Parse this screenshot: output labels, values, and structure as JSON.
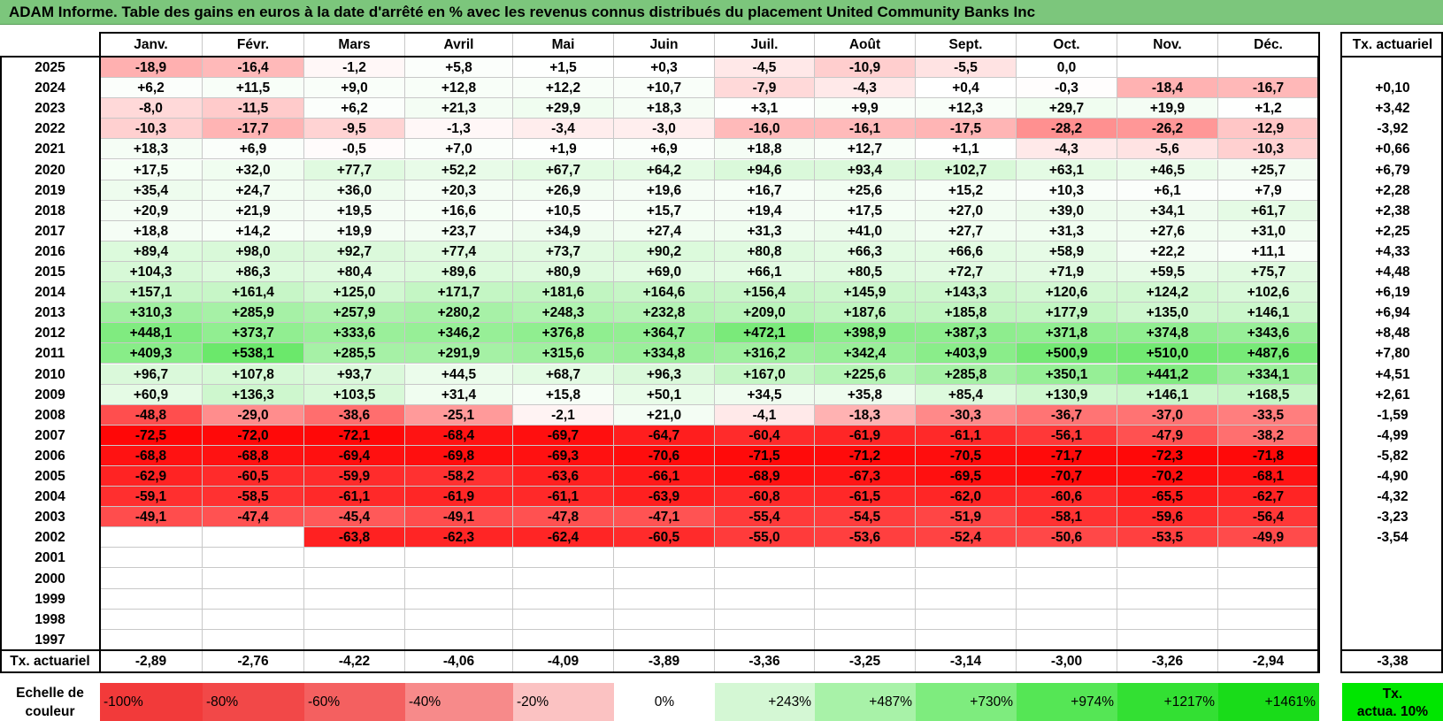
{
  "title": "ADAM Informe. Table des gains en euros à la date d'arrêté en % avec les revenus connus distribués du placement United Community Banks Inc",
  "months": [
    "Janv.",
    "Févr.",
    "Mars",
    "Avril",
    "Mai",
    "Juin",
    "Juil.",
    "Août",
    "Sept.",
    "Oct.",
    "Nov.",
    "Déc."
  ],
  "rate_header": "Tx. actuariel",
  "rows": [
    {
      "year": "2025",
      "values": [
        "-18,9",
        "-16,4",
        "-1,2",
        "+5,8",
        "+1,5",
        "+0,3",
        "-4,5",
        "-10,9",
        "-5,5",
        "0,0",
        "",
        ""
      ],
      "rate": ""
    },
    {
      "year": "2024",
      "values": [
        "+6,2",
        "+11,5",
        "+9,0",
        "+12,8",
        "+12,2",
        "+10,7",
        "-7,9",
        "-4,3",
        "+0,4",
        "-0,3",
        "-18,4",
        "-16,7"
      ],
      "rate": "+0,10"
    },
    {
      "year": "2023",
      "values": [
        "-8,0",
        "-11,5",
        "+6,2",
        "+21,3",
        "+29,9",
        "+18,3",
        "+3,1",
        "+9,9",
        "+12,3",
        "+29,7",
        "+19,9",
        "+1,2"
      ],
      "rate": "+3,42"
    },
    {
      "year": "2022",
      "values": [
        "-10,3",
        "-17,7",
        "-9,5",
        "-1,3",
        "-3,4",
        "-3,0",
        "-16,0",
        "-16,1",
        "-17,5",
        "-28,2",
        "-26,2",
        "-12,9"
      ],
      "rate": "-3,92"
    },
    {
      "year": "2021",
      "values": [
        "+18,3",
        "+6,9",
        "-0,5",
        "+7,0",
        "+1,9",
        "+6,9",
        "+18,8",
        "+12,7",
        "+1,1",
        "-4,3",
        "-5,6",
        "-10,3"
      ],
      "rate": "+0,66"
    },
    {
      "year": "2020",
      "values": [
        "+17,5",
        "+32,0",
        "+77,7",
        "+52,2",
        "+67,7",
        "+64,2",
        "+94,6",
        "+93,4",
        "+102,7",
        "+63,1",
        "+46,5",
        "+25,7"
      ],
      "rate": "+6,79"
    },
    {
      "year": "2019",
      "values": [
        "+35,4",
        "+24,7",
        "+36,0",
        "+20,3",
        "+26,9",
        "+19,6",
        "+16,7",
        "+25,6",
        "+15,2",
        "+10,3",
        "+6,1",
        "+7,9"
      ],
      "rate": "+2,28"
    },
    {
      "year": "2018",
      "values": [
        "+20,9",
        "+21,9",
        "+19,5",
        "+16,6",
        "+10,5",
        "+15,7",
        "+19,4",
        "+17,5",
        "+27,0",
        "+39,0",
        "+34,1",
        "+61,7"
      ],
      "rate": "+2,38"
    },
    {
      "year": "2017",
      "values": [
        "+18,8",
        "+14,2",
        "+19,9",
        "+23,7",
        "+34,9",
        "+27,4",
        "+31,3",
        "+41,0",
        "+27,7",
        "+31,3",
        "+27,6",
        "+31,0"
      ],
      "rate": "+2,25"
    },
    {
      "year": "2016",
      "values": [
        "+89,4",
        "+98,0",
        "+92,7",
        "+77,4",
        "+73,7",
        "+90,2",
        "+80,8",
        "+66,3",
        "+66,6",
        "+58,9",
        "+22,2",
        "+11,1"
      ],
      "rate": "+4,33"
    },
    {
      "year": "2015",
      "values": [
        "+104,3",
        "+86,3",
        "+80,4",
        "+89,6",
        "+80,9",
        "+69,0",
        "+66,1",
        "+80,5",
        "+72,7",
        "+71,9",
        "+59,5",
        "+75,7"
      ],
      "rate": "+4,48"
    },
    {
      "year": "2014",
      "values": [
        "+157,1",
        "+161,4",
        "+125,0",
        "+171,7",
        "+181,6",
        "+164,6",
        "+156,4",
        "+145,9",
        "+143,3",
        "+120,6",
        "+124,2",
        "+102,6"
      ],
      "rate": "+6,19"
    },
    {
      "year": "2013",
      "values": [
        "+310,3",
        "+285,9",
        "+257,9",
        "+280,2",
        "+248,3",
        "+232,8",
        "+209,0",
        "+187,6",
        "+185,8",
        "+177,9",
        "+135,0",
        "+146,1"
      ],
      "rate": "+6,94"
    },
    {
      "year": "2012",
      "values": [
        "+448,1",
        "+373,7",
        "+333,6",
        "+346,2",
        "+376,8",
        "+364,7",
        "+472,1",
        "+398,9",
        "+387,3",
        "+371,8",
        "+374,8",
        "+343,6"
      ],
      "rate": "+8,48"
    },
    {
      "year": "2011",
      "values": [
        "+409,3",
        "+538,1",
        "+285,5",
        "+291,9",
        "+315,6",
        "+334,8",
        "+316,2",
        "+342,4",
        "+403,9",
        "+500,9",
        "+510,0",
        "+487,6"
      ],
      "rate": "+7,80"
    },
    {
      "year": "2010",
      "values": [
        "+96,7",
        "+107,8",
        "+93,7",
        "+44,5",
        "+68,7",
        "+96,3",
        "+167,0",
        "+225,6",
        "+285,8",
        "+350,1",
        "+441,2",
        "+334,1"
      ],
      "rate": "+4,51"
    },
    {
      "year": "2009",
      "values": [
        "+60,9",
        "+136,3",
        "+103,5",
        "+31,4",
        "+15,8",
        "+50,1",
        "+34,5",
        "+35,8",
        "+85,4",
        "+130,9",
        "+146,1",
        "+168,5"
      ],
      "rate": "+2,61"
    },
    {
      "year": "2008",
      "values": [
        "-48,8",
        "-29,0",
        "-38,6",
        "-25,1",
        "-2,1",
        "+21,0",
        "-4,1",
        "-18,3",
        "-30,3",
        "-36,7",
        "-37,0",
        "-33,5"
      ],
      "rate": "-1,59"
    },
    {
      "year": "2007",
      "values": [
        "-72,5",
        "-72,0",
        "-72,1",
        "-68,4",
        "-69,7",
        "-64,7",
        "-60,4",
        "-61,9",
        "-61,1",
        "-56,1",
        "-47,9",
        "-38,2"
      ],
      "rate": "-4,99"
    },
    {
      "year": "2006",
      "values": [
        "-68,8",
        "-68,8",
        "-69,4",
        "-69,8",
        "-69,3",
        "-70,6",
        "-71,5",
        "-71,2",
        "-70,5",
        "-71,7",
        "-72,3",
        "-71,8"
      ],
      "rate": "-5,82"
    },
    {
      "year": "2005",
      "values": [
        "-62,9",
        "-60,5",
        "-59,9",
        "-58,2",
        "-63,6",
        "-66,1",
        "-68,9",
        "-67,3",
        "-69,5",
        "-70,7",
        "-70,2",
        "-68,1"
      ],
      "rate": "-4,90"
    },
    {
      "year": "2004",
      "values": [
        "-59,1",
        "-58,5",
        "-61,1",
        "-61,9",
        "-61,1",
        "-63,9",
        "-60,8",
        "-61,5",
        "-62,0",
        "-60,6",
        "-65,5",
        "-62,7"
      ],
      "rate": "-4,32"
    },
    {
      "year": "2003",
      "values": [
        "-49,1",
        "-47,4",
        "-45,4",
        "-49,1",
        "-47,8",
        "-47,1",
        "-55,4",
        "-54,5",
        "-51,9",
        "-58,1",
        "-59,6",
        "-56,4"
      ],
      "rate": "-3,23"
    },
    {
      "year": "2002",
      "values": [
        "",
        "",
        "-63,8",
        "-62,3",
        "-62,4",
        "-60,5",
        "-55,0",
        "-53,6",
        "-52,4",
        "-50,6",
        "-53,5",
        "-49,9"
      ],
      "rate": "-3,54"
    },
    {
      "year": "2001",
      "values": [
        "",
        "",
        "",
        "",
        "",
        "",
        "",
        "",
        "",
        "",
        "",
        ""
      ],
      "rate": ""
    },
    {
      "year": "2000",
      "values": [
        "",
        "",
        "",
        "",
        "",
        "",
        "",
        "",
        "",
        "",
        "",
        ""
      ],
      "rate": ""
    },
    {
      "year": "1999",
      "values": [
        "",
        "",
        "",
        "",
        "",
        "",
        "",
        "",
        "",
        "",
        "",
        ""
      ],
      "rate": ""
    },
    {
      "year": "1998",
      "values": [
        "",
        "",
        "",
        "",
        "",
        "",
        "",
        "",
        "",
        "",
        "",
        ""
      ],
      "rate": ""
    },
    {
      "year": "1997",
      "values": [
        "",
        "",
        "",
        "",
        "",
        "",
        "",
        "",
        "",
        "",
        "",
        ""
      ],
      "rate": ""
    }
  ],
  "footer": {
    "label": "Tx. actuariel",
    "values": [
      "-2,89",
      "-2,76",
      "-4,22",
      "-4,06",
      "-4,09",
      "-3,89",
      "-3,36",
      "-3,25",
      "-3,14",
      "-3,00",
      "-3,26",
      "-2,94"
    ],
    "total": "-3,38"
  },
  "scale": {
    "label_line1": "Echelle de",
    "label_line2": "couleur",
    "items": [
      {
        "text": "-100%",
        "color": "#f23a3a",
        "align": "left"
      },
      {
        "text": "-80%",
        "color": "#f24848",
        "align": "left"
      },
      {
        "text": "-60%",
        "color": "#f46060",
        "align": "left"
      },
      {
        "text": "-40%",
        "color": "#f78a8a",
        "align": "left"
      },
      {
        "text": "-20%",
        "color": "#fbc2c2",
        "align": "left"
      },
      {
        "text": "0%",
        "color": "#ffffff",
        "align": "center"
      },
      {
        "text": "+243%",
        "color": "#d4f7d4",
        "align": "right"
      },
      {
        "text": "+487%",
        "color": "#a8f2a8",
        "align": "right"
      },
      {
        "text": "+730%",
        "color": "#7eec7e",
        "align": "right"
      },
      {
        "text": "+974%",
        "color": "#55e655",
        "align": "right"
      },
      {
        "text": "+1217%",
        "color": "#33e033",
        "align": "right"
      },
      {
        "text": "+1461%",
        "color": "#19dc19",
        "align": "right"
      }
    ],
    "actua_line1": "Tx.",
    "actua_line2": "actua. 10%",
    "actua_color": "#00e600"
  },
  "colors": {
    "title_bar": "#7cc67c",
    "negative_max": "#ff0000",
    "positive_max": "#00e600"
  }
}
